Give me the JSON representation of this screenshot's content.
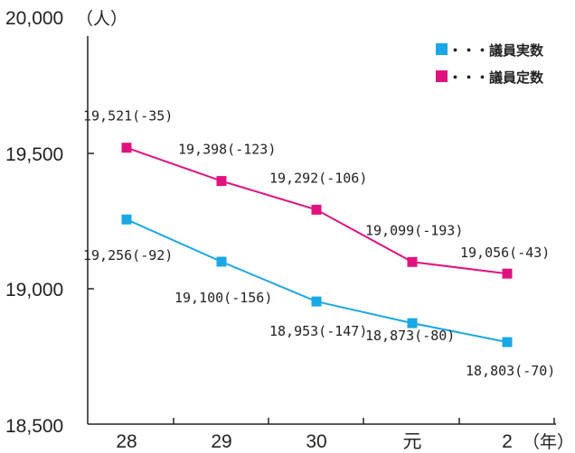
{
  "chart_data": {
    "type": "line",
    "categories": [
      "28",
      "29",
      "30",
      "元",
      "2"
    ],
    "series": [
      {
        "name": "・・・議員定数",
        "color": "#e0127f",
        "values": [
          19521,
          19398,
          19292,
          19099,
          19056
        ],
        "labels": [
          "19,521(-35)",
          "19,398(-123)",
          "19,292(-106)",
          "19,099(-193)",
          "19,056(-43)"
        ]
      },
      {
        "name": "・・・議員実数",
        "color": "#1aa7e6",
        "values": [
          19256,
          19100,
          18953,
          18873,
          18803
        ],
        "labels": [
          "19,256(-92)",
          "19,100(-156)",
          "18,953(-147)",
          "18,873(-80)",
          "18,803(-70)"
        ]
      }
    ],
    "ylim": [
      18500,
      20000
    ],
    "yticks": [
      "18,500",
      "19,000",
      "19,500",
      "20,000"
    ],
    "ytick_values": [
      18500,
      19000,
      19500,
      20000
    ],
    "y_unit": "（人）",
    "x_unit": "（年）",
    "grid": false,
    "legend_position": "top-right"
  }
}
